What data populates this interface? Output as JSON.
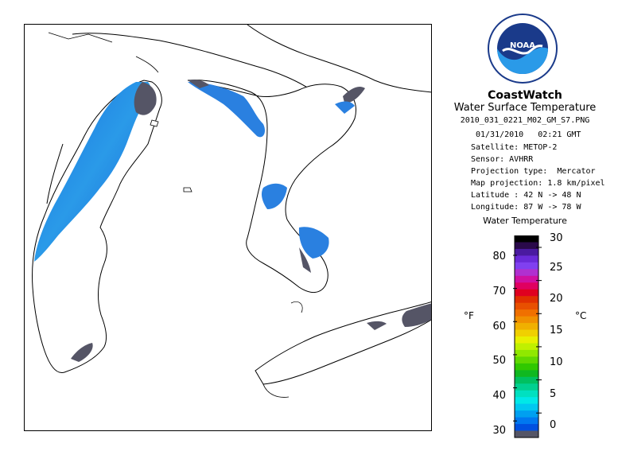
{
  "branding": {
    "logo_icon": "noaa-logo-icon",
    "logo_text": "NOAA",
    "logo_ring_text": "NATIONAL OCEANIC AND ATMOSPHERIC ADMINISTRATION · U.S. DEPARTMENT OF COMMERCE",
    "name": "CoastWatch",
    "subtitle": "Water Surface Temperature"
  },
  "image_info": {
    "filename": "2010_031_0221_M02_GM_S7.PNG",
    "datetime": "01/31/2010   02:21 GMT",
    "satellite": "Satellite: METOP-2",
    "sensor": "Sensor: AVHRR",
    "projection_type": "Projection type:  Mercator",
    "map_projection": "Map projection: 1.8 km/pixel",
    "latitude": "Latitude : 42 N -> 48 N",
    "longitude": "Longitude: 87 W -> 78 W"
  },
  "map": {
    "region": "Great Lakes",
    "lakes": [
      "Lake Michigan",
      "Lake Huron",
      "Georgian Bay",
      "Saginaw Bay",
      "Lake Erie"
    ],
    "colors": {
      "land": "#ffffff",
      "coast": "#000000",
      "cloud_ice": "#555566"
    }
  },
  "legend": {
    "title": "Water Temperature",
    "unit_f": "°F",
    "unit_c": "°C",
    "fahrenheit_ticks": [
      "80",
      "70",
      "60",
      "50",
      "40",
      "30"
    ],
    "celsius_ticks": [
      "30",
      "25",
      "20",
      "15",
      "10",
      "5",
      "0"
    ],
    "color_steps": [
      "#000000",
      "#2a0a4a",
      "#4a1aa0",
      "#6a2ad8",
      "#8040f0",
      "#b030d0",
      "#d010a0",
      "#e00060",
      "#e00020",
      "#e03000",
      "#e85000",
      "#f07000",
      "#f09000",
      "#f0b000",
      "#f0d000",
      "#e8f000",
      "#c0f000",
      "#90e800",
      "#60d800",
      "#30c800",
      "#10b820",
      "#00c060",
      "#00d090",
      "#00e0c0",
      "#00e8e8",
      "#00c8f0",
      "#00a0f0",
      "#0078f0",
      "#0050e0",
      "#555566"
    ]
  }
}
